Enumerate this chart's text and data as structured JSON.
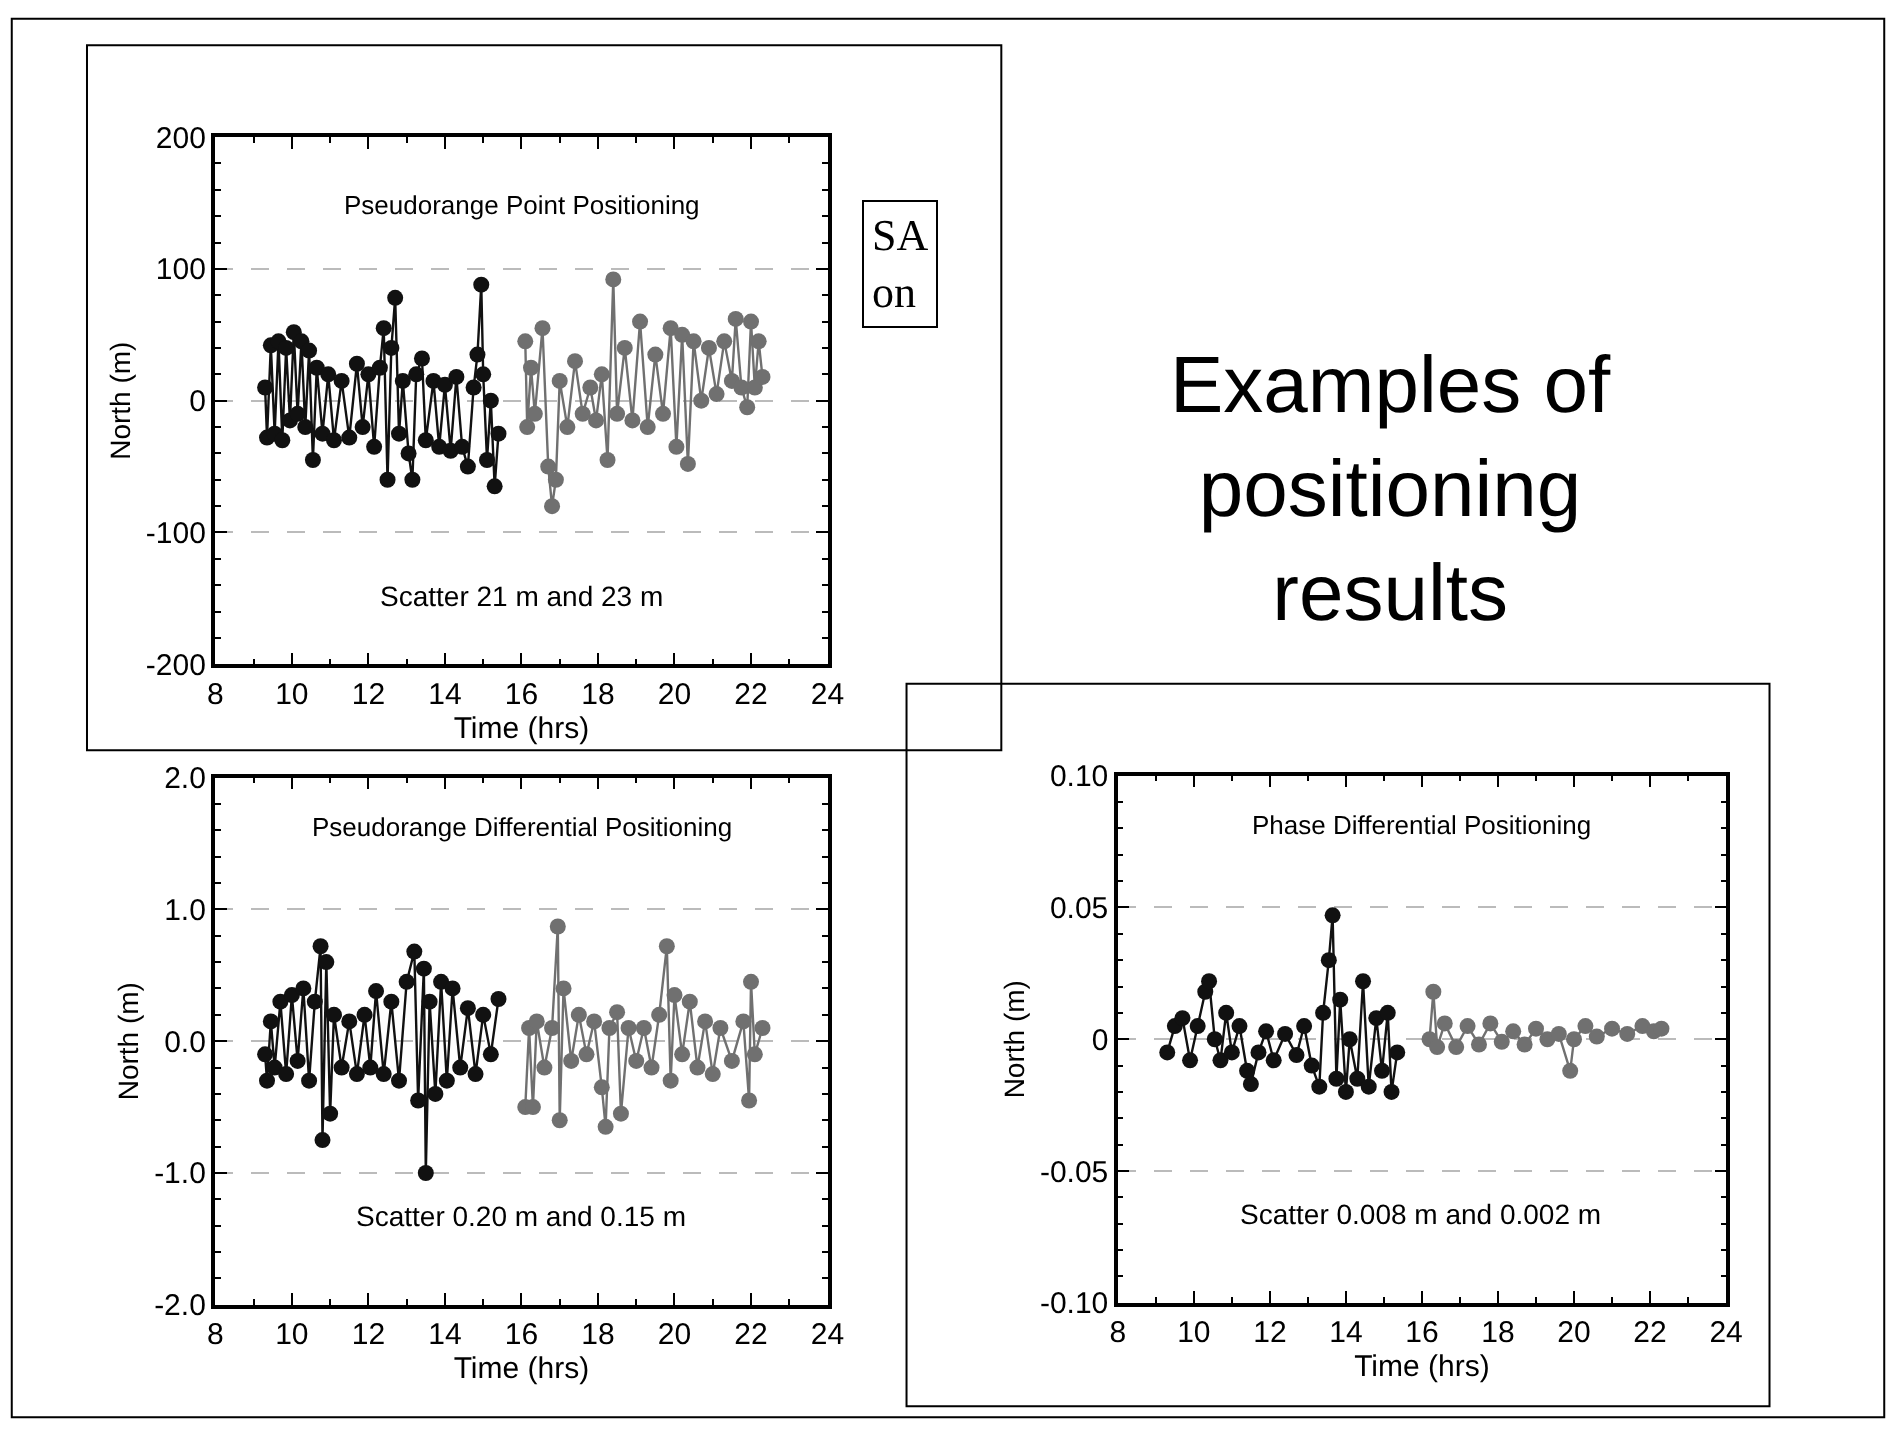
{
  "chart_data": [
    {
      "type": "line",
      "title": "Pseudorange Point Positioning",
      "xlabel": "Time (hrs)",
      "ylabel": "North (m)",
      "annotations": [
        "Scatter 21 m and 23 m"
      ],
      "marker": "circle",
      "line_style": "solid",
      "grid": "y",
      "xlim": [
        8,
        24
      ],
      "xticks": [
        8,
        10,
        12,
        14,
        16,
        18,
        20,
        22,
        24
      ],
      "ylim": [
        -200,
        200
      ],
      "yticks": [
        -200,
        -100,
        0,
        100,
        200
      ],
      "series": [
        {
          "color": "#111111",
          "x": [
            9.3,
            9.35,
            9.45,
            9.55,
            9.65,
            9.75,
            9.85,
            9.95,
            10.05,
            10.15,
            10.25,
            10.35,
            10.45,
            10.55,
            10.65,
            10.8,
            10.95,
            11.1,
            11.3,
            11.5,
            11.7,
            11.85,
            12.0,
            12.15,
            12.3,
            12.4,
            12.5,
            12.6,
            12.7,
            12.8,
            12.9,
            13.05,
            13.15,
            13.25,
            13.4,
            13.5,
            13.7,
            13.85,
            14.0,
            14.15,
            14.3,
            14.45,
            14.6,
            14.75,
            14.85,
            14.95,
            15.0,
            15.1,
            15.2,
            15.3,
            15.4
          ],
          "values": [
            10,
            -28,
            42,
            -25,
            45,
            -30,
            40,
            -15,
            52,
            -10,
            45,
            -20,
            38,
            -45,
            25,
            -25,
            20,
            -30,
            15,
            -28,
            28,
            -20,
            20,
            -35,
            25,
            55,
            -60,
            40,
            78,
            -25,
            15,
            -40,
            -60,
            20,
            32,
            -30,
            15,
            -35,
            12,
            -38,
            18,
            -35,
            -50,
            10,
            35,
            88,
            20,
            -45,
            0,
            -65,
            -25
          ]
        },
        {
          "color": "#707070",
          "x": [
            16.1,
            16.15,
            16.25,
            16.35,
            16.55,
            16.7,
            16.8,
            16.9,
            17.0,
            17.2,
            17.4,
            17.6,
            17.8,
            17.95,
            18.1,
            18.25,
            18.4,
            18.5,
            18.7,
            18.9,
            19.1,
            19.3,
            19.5,
            19.7,
            19.9,
            20.05,
            20.2,
            20.35,
            20.5,
            20.7,
            20.9,
            21.1,
            21.3,
            21.5,
            21.6,
            21.75,
            21.9,
            22.0,
            22.1,
            22.2,
            22.3
          ],
          "values": [
            45,
            -20,
            25,
            -10,
            55,
            -50,
            -80,
            -60,
            15,
            -20,
            30,
            -10,
            10,
            -15,
            20,
            -45,
            92,
            -10,
            40,
            -15,
            60,
            -20,
            35,
            -10,
            55,
            -35,
            50,
            -48,
            45,
            0,
            40,
            5,
            45,
            15,
            62,
            10,
            -5,
            60,
            10,
            45,
            18
          ]
        }
      ]
    },
    {
      "type": "line",
      "title": "Pseudorange Differential Positioning",
      "xlabel": "Time (hrs)",
      "ylabel": "North (m)",
      "annotations": [
        "Scatter 0.20 m and 0.15 m"
      ],
      "marker": "circle",
      "line_style": "solid",
      "grid": "y",
      "xlim": [
        8,
        24
      ],
      "xticks": [
        8,
        10,
        12,
        14,
        16,
        18,
        20,
        22,
        24
      ],
      "ylim": [
        -2,
        2
      ],
      "yticks": [
        {
          "value": -2,
          "label": "-2.0"
        },
        {
          "value": -1,
          "label": "-1.0"
        },
        {
          "value": 0,
          "label": "0.0"
        },
        {
          "value": 1,
          "label": "1.0"
        },
        {
          "value": 2,
          "label": "2.0"
        }
      ],
      "series": [
        {
          "color": "#111111",
          "x": [
            9.3,
            9.35,
            9.45,
            9.55,
            9.7,
            9.85,
            10.0,
            10.15,
            10.3,
            10.45,
            10.6,
            10.75,
            10.8,
            10.9,
            11.0,
            11.1,
            11.3,
            11.5,
            11.7,
            11.9,
            12.05,
            12.2,
            12.4,
            12.6,
            12.8,
            13.0,
            13.2,
            13.3,
            13.45,
            13.5,
            13.6,
            13.75,
            13.9,
            14.05,
            14.2,
            14.4,
            14.6,
            14.8,
            15.0,
            15.2,
            15.4
          ],
          "values": [
            -0.1,
            -0.3,
            0.15,
            -0.2,
            0.3,
            -0.25,
            0.35,
            -0.15,
            0.4,
            -0.3,
            0.3,
            0.72,
            -0.75,
            0.6,
            -0.55,
            0.2,
            -0.2,
            0.15,
            -0.25,
            0.2,
            -0.2,
            0.38,
            -0.25,
            0.3,
            -0.3,
            0.45,
            0.68,
            -0.45,
            0.55,
            -1.0,
            0.3,
            -0.4,
            0.45,
            -0.3,
            0.4,
            -0.2,
            0.25,
            -0.25,
            0.2,
            -0.1,
            0.32
          ]
        },
        {
          "color": "#707070",
          "x": [
            16.1,
            16.2,
            16.3,
            16.4,
            16.6,
            16.8,
            16.95,
            17.0,
            17.1,
            17.3,
            17.5,
            17.7,
            17.9,
            18.1,
            18.2,
            18.3,
            18.5,
            18.6,
            18.8,
            19.0,
            19.2,
            19.4,
            19.6,
            19.8,
            19.9,
            20.0,
            20.2,
            20.4,
            20.6,
            20.8,
            21.0,
            21.2,
            21.5,
            21.8,
            21.95,
            22.0,
            22.1,
            22.3
          ],
          "values": [
            -0.5,
            0.1,
            -0.5,
            0.15,
            -0.2,
            0.1,
            0.87,
            -0.6,
            0.4,
            -0.15,
            0.2,
            -0.1,
            0.15,
            -0.35,
            -0.65,
            0.1,
            0.22,
            -0.55,
            0.1,
            -0.15,
            0.1,
            -0.2,
            0.2,
            0.72,
            -0.3,
            0.35,
            -0.1,
            0.3,
            -0.2,
            0.15,
            -0.25,
            0.1,
            -0.15,
            0.15,
            -0.45,
            0.45,
            -0.1,
            0.1
          ]
        }
      ]
    },
    {
      "type": "line",
      "title": "Phase Differential Positioning",
      "xlabel": "Time (hrs)",
      "ylabel": "North (m)",
      "annotations": [
        "Scatter 0.008 m and 0.002 m"
      ],
      "marker": "circle",
      "line_style": "solid",
      "grid": "y",
      "xlim": [
        8,
        24
      ],
      "xticks": [
        8,
        10,
        12,
        14,
        16,
        18,
        20,
        22,
        24
      ],
      "ylim": [
        -0.1,
        0.1
      ],
      "yticks": [
        {
          "value": -0.1,
          "label": "-0.10"
        },
        -0.05,
        0,
        0.05,
        {
          "value": 0.1,
          "label": "0.10"
        }
      ],
      "series": [
        {
          "color": "#111111",
          "x": [
            9.3,
            9.5,
            9.7,
            9.9,
            10.1,
            10.3,
            10.4,
            10.55,
            10.7,
            10.85,
            11.0,
            11.2,
            11.4,
            11.5,
            11.7,
            11.9,
            12.1,
            12.4,
            12.7,
            12.9,
            13.1,
            13.3,
            13.4,
            13.55,
            13.65,
            13.75,
            13.85,
            14.0,
            14.1,
            14.3,
            14.45,
            14.6,
            14.8,
            14.95,
            15.1,
            15.2,
            15.35
          ],
          "values": [
            -0.005,
            0.005,
            0.008,
            -0.008,
            0.005,
            0.018,
            0.022,
            0.0,
            -0.008,
            0.01,
            -0.005,
            0.005,
            -0.012,
            -0.017,
            -0.005,
            0.003,
            -0.008,
            0.002,
            -0.006,
            0.005,
            -0.01,
            -0.018,
            0.01,
            0.03,
            0.047,
            -0.015,
            0.015,
            -0.02,
            0.0,
            -0.015,
            0.022,
            -0.018,
            0.008,
            -0.012,
            0.01,
            -0.02,
            -0.005
          ]
        },
        {
          "color": "#707070",
          "x": [
            16.2,
            16.3,
            16.4,
            16.6,
            16.9,
            17.2,
            17.5,
            17.8,
            18.1,
            18.4,
            18.7,
            19.0,
            19.3,
            19.6,
            19.9,
            20.0,
            20.3,
            20.6,
            21.0,
            21.4,
            21.8,
            22.1,
            22.3
          ],
          "values": [
            0.0,
            0.018,
            -0.003,
            0.006,
            -0.003,
            0.005,
            -0.002,
            0.006,
            -0.001,
            0.003,
            -0.002,
            0.004,
            0.0,
            0.002,
            -0.012,
            0.0,
            0.005,
            0.001,
            0.004,
            0.002,
            0.005,
            0.003,
            0.004
          ]
        }
      ]
    },
    {
      "type": "other",
      "title": "Examples of positioning results",
      "annotations": [
        "SA on"
      ]
    }
  ]
}
